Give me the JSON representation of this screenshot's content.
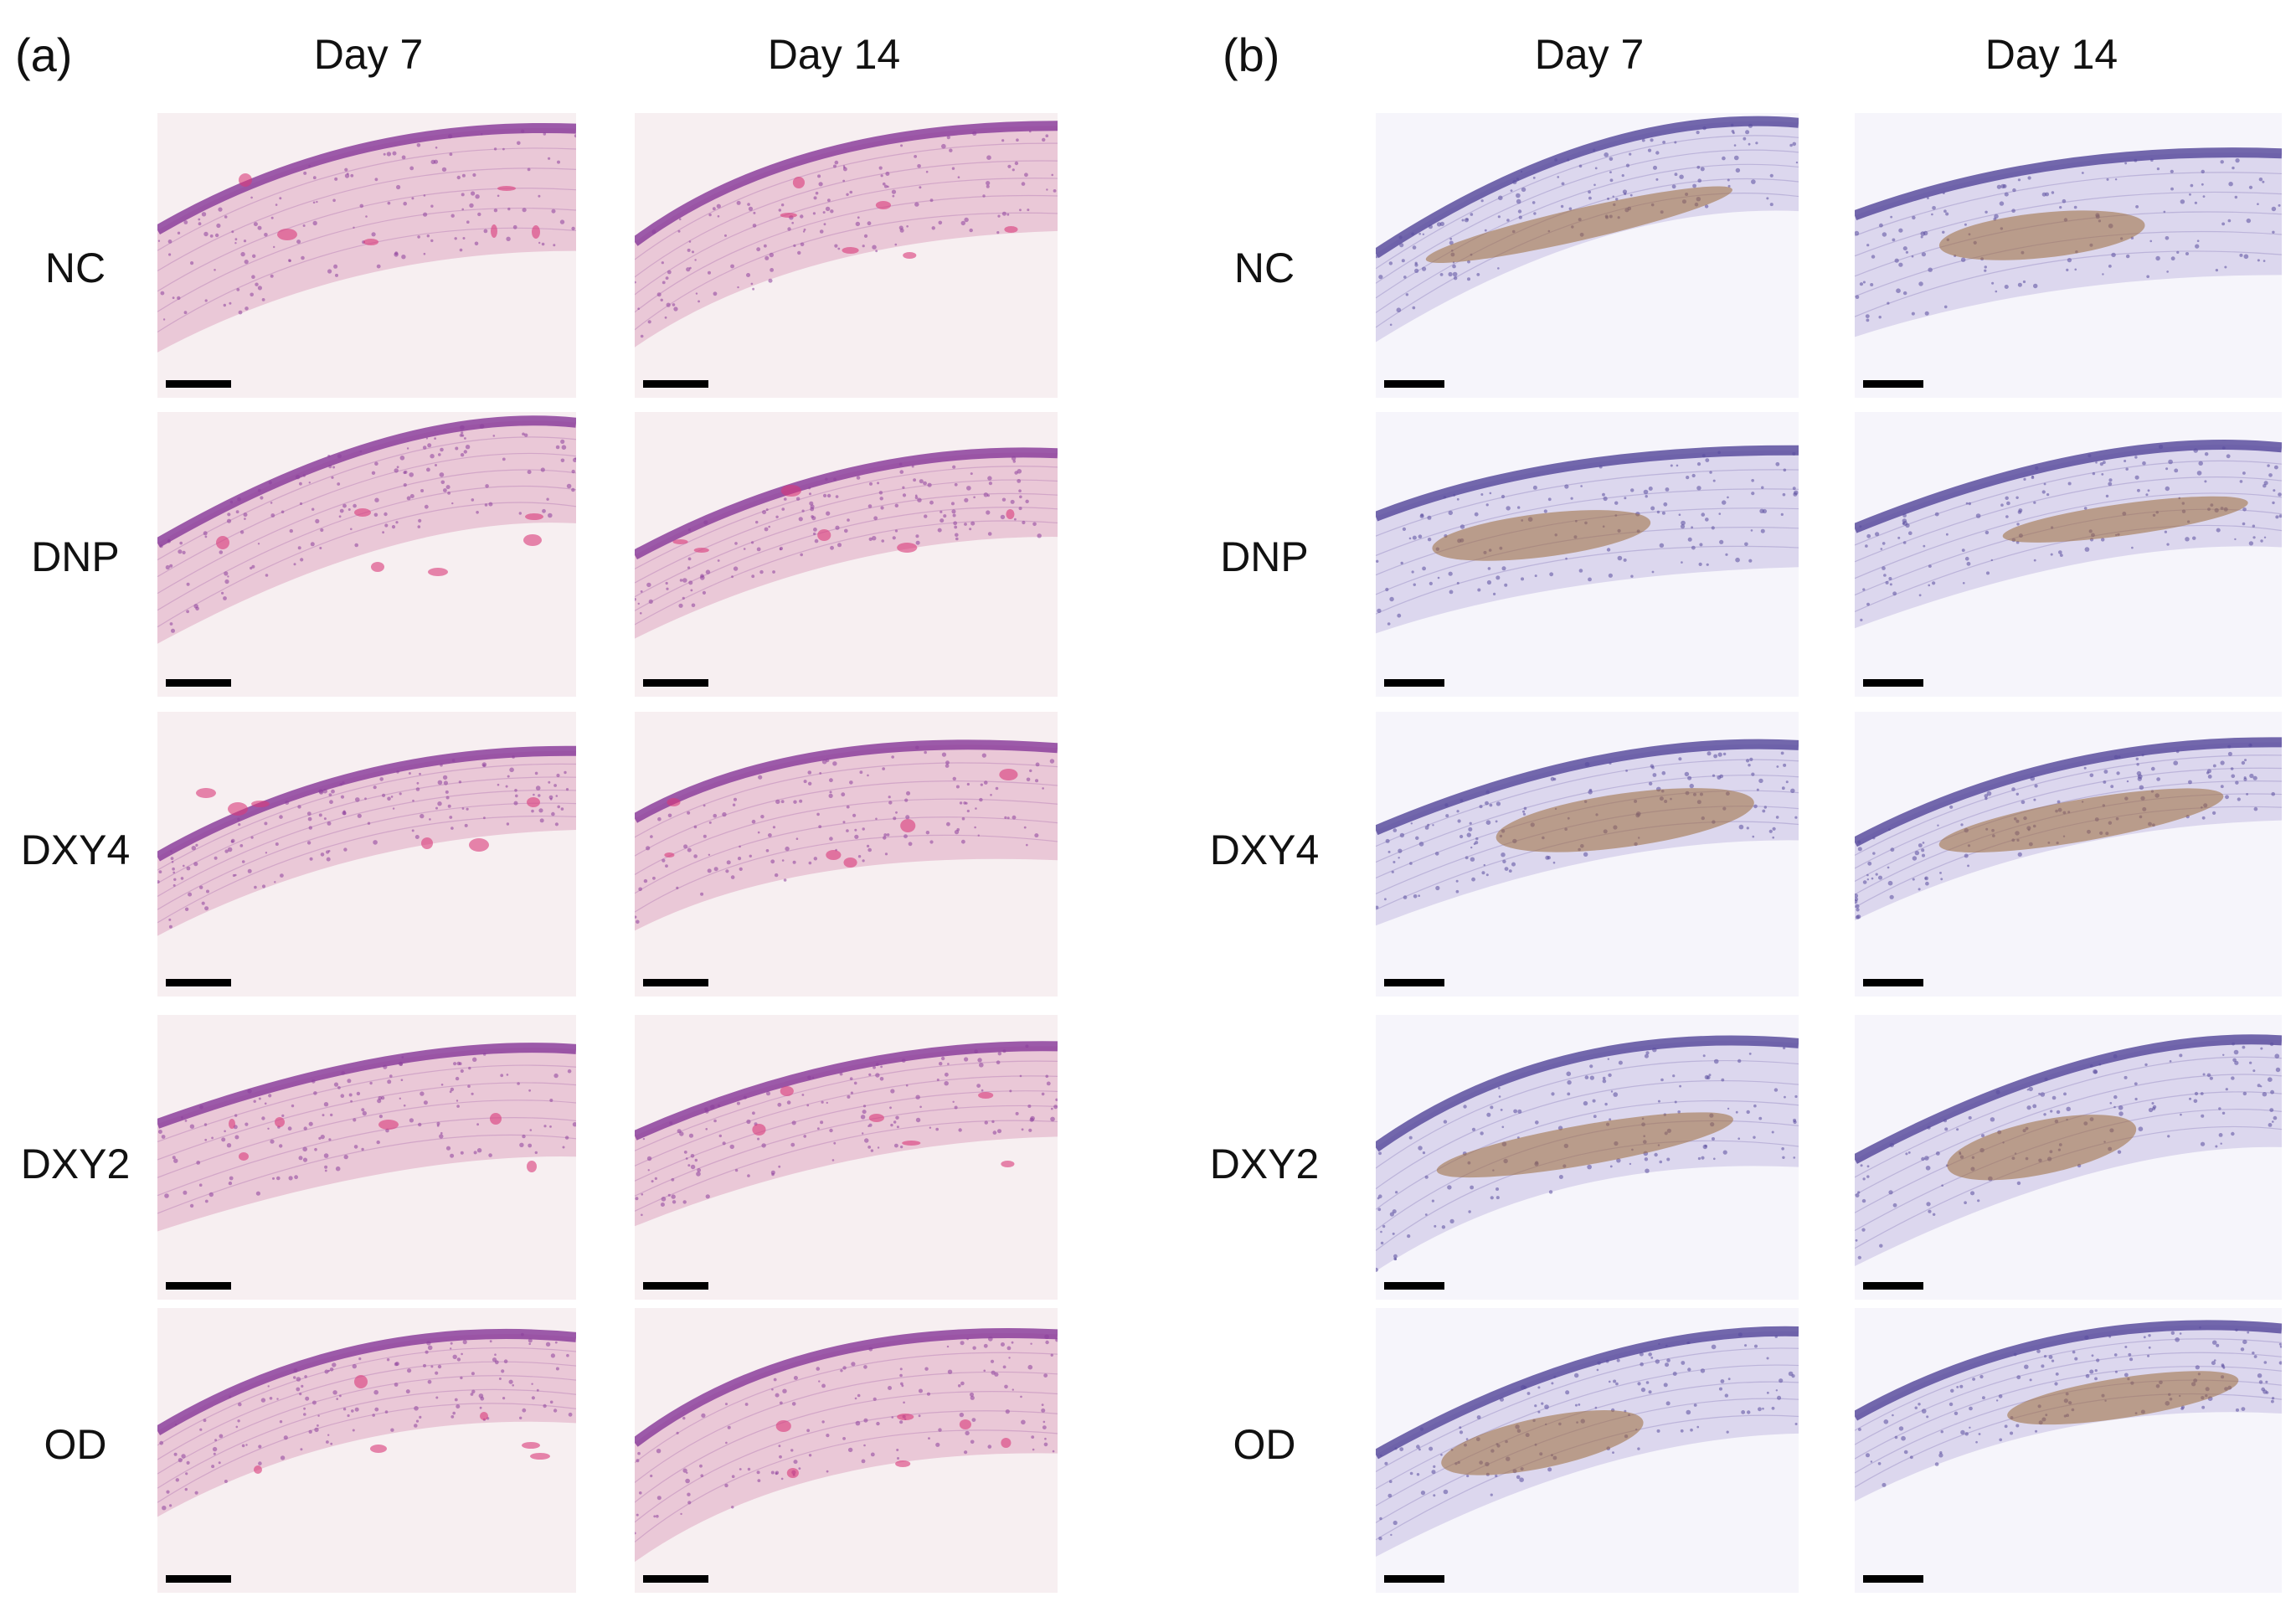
{
  "panels": [
    {
      "letter": "(a)",
      "stain": "he",
      "columns": [
        "Day 7",
        "Day 14"
      ]
    },
    {
      "letter": "(b)",
      "stain": "ihc",
      "columns": [
        "Day 7",
        "Day 14"
      ]
    }
  ],
  "rows": [
    "NC",
    "DNP",
    "DXY4",
    "DXY2",
    "OD"
  ],
  "colors": {
    "he_background": "#f7eff1",
    "he_tissue": "#e8c3d4",
    "he_epithelium": "#8c3f9c",
    "he_blood": "#d9387a",
    "ihc_background": "#f6f5fb",
    "ihc_tissue": "#d9d4ec",
    "ihc_epithelium": "#5a4d9e",
    "ihc_brown": "#9c6b3a",
    "scale_bar": "#000000"
  }
}
